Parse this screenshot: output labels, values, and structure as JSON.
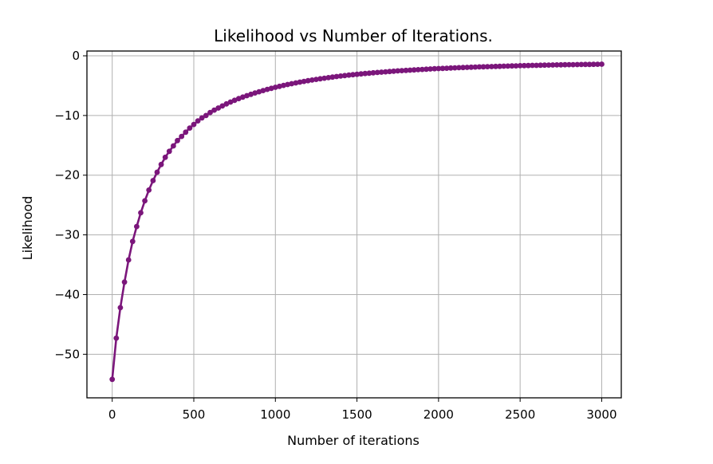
{
  "chart_data": {
    "type": "line",
    "title": "Likelihood vs Number of Iterations.",
    "xlabel": "Number of iterations",
    "ylabel": "Likelihood",
    "xlim": [
      -155,
      3120
    ],
    "ylim": [
      -57.3,
      0.8
    ],
    "xticks": [
      0,
      500,
      1000,
      1500,
      2000,
      2500,
      3000
    ],
    "yticks": [
      0,
      -10,
      -20,
      -30,
      -40,
      -50
    ],
    "grid": true,
    "color": "#7b167b",
    "marker": "circle",
    "series": [
      {
        "x": [
          0,
          25,
          50,
          75,
          100,
          125,
          150,
          175,
          200,
          225,
          250,
          275,
          300,
          325,
          350,
          375,
          400,
          425,
          450,
          475,
          500,
          525,
          550,
          575,
          600,
          625,
          650,
          675,
          700,
          725,
          750,
          775,
          800,
          825,
          850,
          875,
          900,
          925,
          950,
          975,
          1000,
          1025,
          1050,
          1075,
          1100,
          1125,
          1150,
          1175,
          1200,
          1225,
          1250,
          1275,
          1300,
          1325,
          1350,
          1375,
          1400,
          1425,
          1450,
          1475,
          1500,
          1525,
          1550,
          1575,
          1600,
          1625,
          1650,
          1675,
          1700,
          1725,
          1750,
          1775,
          1800,
          1825,
          1850,
          1875,
          1900,
          1925,
          1950,
          1975,
          2000,
          2025,
          2050,
          2075,
          2100,
          2125,
          2150,
          2175,
          2200,
          2225,
          2250,
          2275,
          2300,
          2325,
          2350,
          2375,
          2400,
          2425,
          2450,
          2475,
          2500,
          2525,
          2550,
          2575,
          2600,
          2625,
          2650,
          2675,
          2700,
          2725,
          2750,
          2775,
          2800,
          2825,
          2850,
          2875,
          2900,
          2925,
          2950,
          2975,
          3000
        ],
        "y": [
          -54.2,
          -47.3,
          -42.2,
          -37.9,
          -34.2,
          -31.1,
          -28.6,
          -26.3,
          -24.3,
          -22.5,
          -20.9,
          -19.5,
          -18.2,
          -17.0,
          -16.0,
          -15.1,
          -14.2,
          -13.5,
          -12.8,
          -12.1,
          -11.5,
          -10.9,
          -10.4,
          -10.0,
          -9.5,
          -9.1,
          -8.75,
          -8.4,
          -8.05,
          -7.75,
          -7.45,
          -7.18,
          -6.92,
          -6.68,
          -6.45,
          -6.23,
          -6.02,
          -5.82,
          -5.63,
          -5.45,
          -5.28,
          -5.12,
          -4.96,
          -4.81,
          -4.67,
          -4.54,
          -4.41,
          -4.29,
          -4.17,
          -4.06,
          -3.95,
          -3.85,
          -3.75,
          -3.66,
          -3.57,
          -3.48,
          -3.4,
          -3.32,
          -3.24,
          -3.17,
          -3.1,
          -3.03,
          -2.97,
          -2.91,
          -2.85,
          -2.79,
          -2.74,
          -2.68,
          -2.63,
          -2.58,
          -2.53,
          -2.49,
          -2.44,
          -2.4,
          -2.36,
          -2.32,
          -2.28,
          -2.24,
          -2.21,
          -2.17,
          -2.14,
          -2.11,
          -2.08,
          -2.05,
          -2.02,
          -1.99,
          -1.96,
          -1.94,
          -1.91,
          -1.89,
          -1.86,
          -1.84,
          -1.82,
          -1.8,
          -1.78,
          -1.76,
          -1.74,
          -1.72,
          -1.7,
          -1.68,
          -1.66,
          -1.65,
          -1.63,
          -1.61,
          -1.6,
          -1.58,
          -1.57,
          -1.55,
          -1.54,
          -1.53,
          -1.51,
          -1.5,
          -1.49,
          -1.48,
          -1.47,
          -1.46,
          -1.45,
          -1.44,
          -1.43,
          -1.42,
          -1.41
        ]
      }
    ]
  }
}
